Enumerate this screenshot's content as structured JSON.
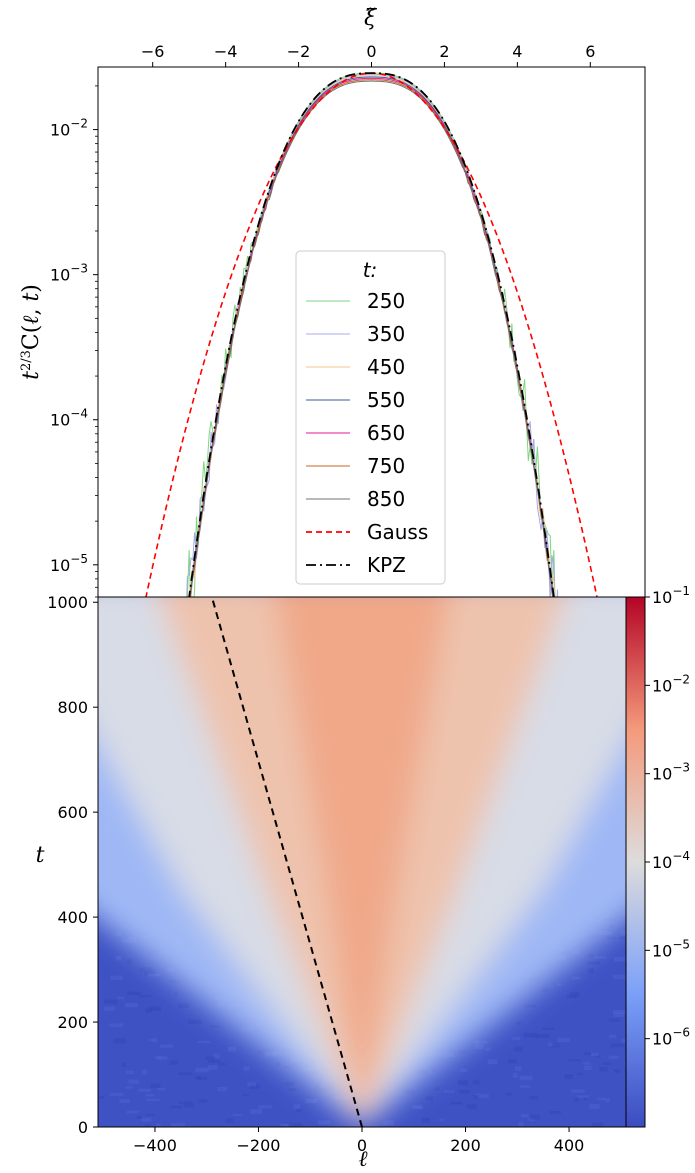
{
  "chart_data": [
    {
      "type": "line",
      "xlabel_top": "ξ̃",
      "ylabel": "t^{2/3}C(ℓ,t)",
      "yscale": "log",
      "xlim": [
        -7.5,
        7.5
      ],
      "ylim": [
        6e-06,
        0.027
      ],
      "x_ticks": [
        {
          "v": -6,
          "label": "−6"
        },
        {
          "v": -4,
          "label": "−4"
        },
        {
          "v": -2,
          "label": "−2"
        },
        {
          "v": 0,
          "label": "0"
        },
        {
          "v": 2,
          "label": "2"
        },
        {
          "v": 4,
          "label": "4"
        },
        {
          "v": 6,
          "label": "6"
        }
      ],
      "y_ticks": [
        {
          "exp": -2,
          "base": "10",
          "sup": "−2"
        },
        {
          "exp": -3,
          "base": "10",
          "sup": "−3"
        },
        {
          "exp": -4,
          "base": "10",
          "sup": "−4"
        },
        {
          "exp": -5,
          "base": "10",
          "sup": "−5"
        }
      ],
      "peak_value": 0.0245,
      "legend": {
        "title": "t:",
        "placement": "center",
        "entries": [
          {
            "label": "250",
            "color": "#7fd67f",
            "style": "solid"
          },
          {
            "label": "350",
            "color": "#a8a8e8",
            "style": "solid"
          },
          {
            "label": "450",
            "color": "#f5c48a",
            "style": "solid"
          },
          {
            "label": "550",
            "color": "#2f5f9f",
            "style": "solid"
          },
          {
            "label": "650",
            "color": "#e01a9a",
            "style": "solid"
          },
          {
            "label": "750",
            "color": "#c8641e",
            "style": "solid"
          },
          {
            "label": "850",
            "color": "#707070",
            "style": "solid"
          },
          {
            "label": "Gauss",
            "color": "#ff0000",
            "style": "dashed"
          },
          {
            "label": "KPZ",
            "color": "#000000",
            "style": "dashdot"
          }
        ]
      },
      "series_t": [
        250,
        350,
        450,
        550,
        650,
        750,
        850
      ]
    },
    {
      "type": "heatmap",
      "xlabel": "ℓ",
      "ylabel": "t",
      "xlim": [
        -510,
        510
      ],
      "ylim": [
        0,
        1010
      ],
      "x_ticks": [
        {
          "v": -400,
          "label": "−400"
        },
        {
          "v": -200,
          "label": "−200"
        },
        {
          "v": 0,
          "label": "0"
        },
        {
          "v": 200,
          "label": "200"
        },
        {
          "v": 400,
          "label": "400"
        }
      ],
      "y_ticks": [
        {
          "v": 0,
          "label": "0"
        },
        {
          "v": 200,
          "label": "200"
        },
        {
          "v": 400,
          "label": "400"
        },
        {
          "v": 600,
          "label": "600"
        },
        {
          "v": 800,
          "label": "800"
        },
        {
          "v": 1000,
          "label": "1000"
        }
      ],
      "dashed_line": {
        "x0": 0,
        "t0": 0,
        "x1": -290,
        "t1": 1010,
        "color": "#000000"
      },
      "colorbar": {
        "scale": "log",
        "range": [
          1e-07,
          0.1
        ],
        "cmap": "coolwarm",
        "ticks": [
          {
            "exp": -1,
            "base": "10",
            "sup": "−1"
          },
          {
            "exp": -2,
            "base": "10",
            "sup": "−2"
          },
          {
            "exp": -3,
            "base": "10",
            "sup": "−3"
          },
          {
            "exp": -4,
            "base": "10",
            "sup": "−4"
          },
          {
            "exp": -5,
            "base": "10",
            "sup": "−5"
          },
          {
            "exp": -6,
            "base": "10",
            "sup": "−6"
          }
        ]
      }
    }
  ]
}
